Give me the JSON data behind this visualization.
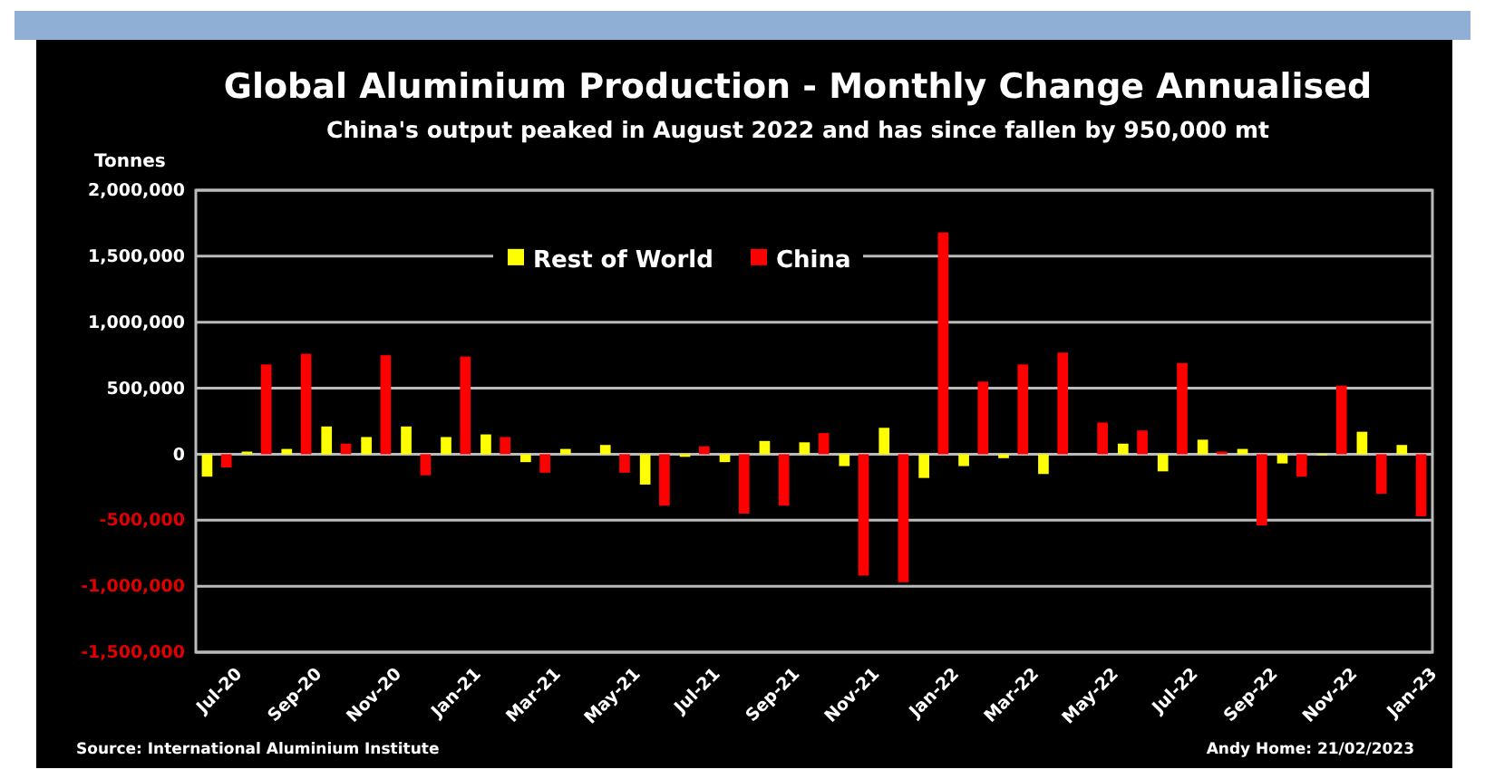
{
  "chart_data": {
    "type": "bar",
    "title": "Global Aluminium Production - Monthly Change Annualised",
    "subtitle": "China's output peaked in August 2022 and has since fallen by 950,000 mt",
    "ylabel": "Tonnes",
    "categories": [
      "Jul-20",
      null,
      "Sep-20",
      null,
      "Nov-20",
      null,
      "Jan-21",
      null,
      "Mar-21",
      null,
      "May-21",
      null,
      "Jul-21",
      null,
      "Sep-21",
      null,
      "Nov-21",
      null,
      "Jan-22",
      null,
      "Mar-22",
      null,
      "May-22",
      null,
      "Jul-22",
      null,
      "Sep-22",
      null,
      "Nov-22",
      null,
      "Jan-23"
    ],
    "series": [
      {
        "name": "Rest of World",
        "color": "#ffff00",
        "values": [
          -170000,
          20000,
          40000,
          210000,
          130000,
          210000,
          130000,
          150000,
          -60000,
          40000,
          70000,
          -230000,
          -20000,
          -60000,
          100000,
          90000,
          -90000,
          200000,
          -180000,
          -90000,
          -30000,
          -150000,
          0,
          80000,
          -130000,
          110000,
          40000,
          -70000,
          -10000,
          170000,
          70000
        ]
      },
      {
        "name": "China",
        "color": "#ff0000",
        "values": [
          -100000,
          680000,
          760000,
          80000,
          750000,
          -160000,
          740000,
          130000,
          -140000,
          0,
          -140000,
          -390000,
          60000,
          -450000,
          -390000,
          160000,
          -920000,
          -970000,
          1680000,
          550000,
          680000,
          770000,
          240000,
          180000,
          690000,
          20000,
          -540000,
          -170000,
          520000,
          -300000,
          -470000
        ]
      }
    ],
    "ylim": [
      -1500000,
      2000000
    ],
    "yticks": [
      {
        "value": -1500000,
        "label": "-1,500,000"
      },
      {
        "value": -1000000,
        "label": "-1,000,000"
      },
      {
        "value": -500000,
        "label": "-500,000"
      },
      0,
      {
        "value": 500000,
        "label": "500,000"
      },
      {
        "value": 1000000,
        "label": "1,000,000"
      },
      {
        "value": 1500000,
        "label": "1,500,000"
      },
      {
        "value": 2000000,
        "label": "2,000,000"
      }
    ],
    "grid": "y",
    "legend": "top",
    "annotations": [
      "Source: International Aluminium Institute",
      "Andy Home: 21/02/2023"
    ]
  }
}
